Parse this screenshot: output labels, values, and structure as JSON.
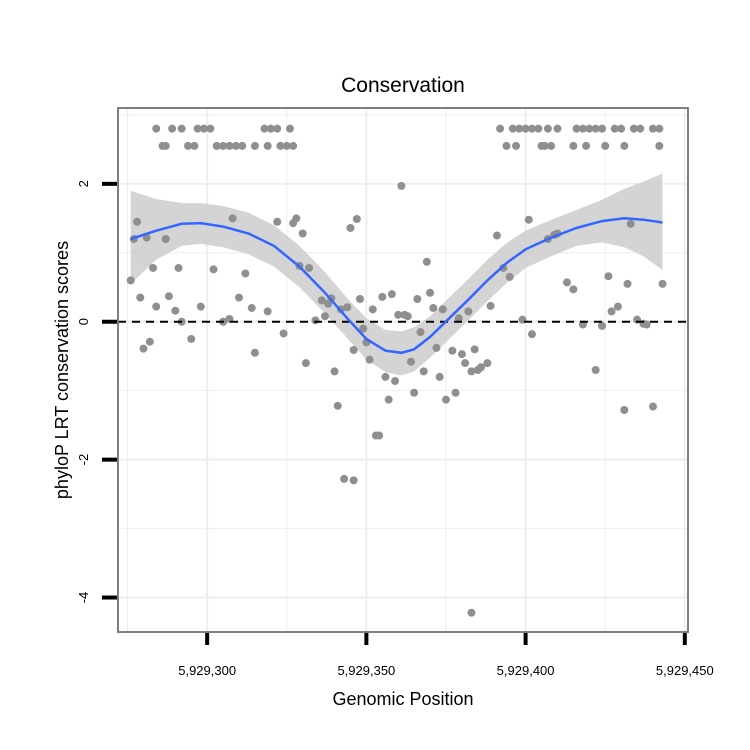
{
  "chart_data": {
    "type": "scatter",
    "title": "Conservation",
    "xlabel": "Genomic Position",
    "ylabel": "phyloP LRT conservation scores",
    "xlim": [
      5929272,
      5929451
    ],
    "ylim": [
      -4.5,
      3.1
    ],
    "x_ticks": [
      5929300,
      5929350,
      5929400,
      5929450
    ],
    "x_tick_labels": [
      "5,929,300",
      "5,929,350",
      "5,929,400",
      "5,929,450"
    ],
    "y_ticks": [
      -4,
      -2,
      0,
      2
    ],
    "y_tick_labels": [
      "-4",
      "-2",
      "0",
      "2"
    ],
    "grid": true,
    "reference_line": {
      "y": 0,
      "style": "dashed"
    },
    "colors": {
      "points": "#8f8f8f",
      "smooth_line": "#3366ff",
      "confidence_band": "#cccccc",
      "panel_border": "#7f7f7f",
      "grid": "#eeeeee"
    },
    "series": [
      {
        "name": "scores",
        "points": [
          [
            5929284,
            2.8
          ],
          [
            5929289,
            2.8
          ],
          [
            5929292,
            2.8
          ],
          [
            5929297,
            2.8
          ],
          [
            5929299,
            2.8
          ],
          [
            5929301,
            2.8
          ],
          [
            5929318,
            2.8
          ],
          [
            5929320,
            2.8
          ],
          [
            5929322,
            2.8
          ],
          [
            5929326,
            2.8
          ],
          [
            5929286,
            2.55
          ],
          [
            5929287,
            2.55
          ],
          [
            5929294,
            2.55
          ],
          [
            5929296,
            2.55
          ],
          [
            5929303,
            2.55
          ],
          [
            5929305,
            2.55
          ],
          [
            5929307,
            2.55
          ],
          [
            5929309,
            2.55
          ],
          [
            5929311,
            2.55
          ],
          [
            5929315,
            2.55
          ],
          [
            5929319,
            2.55
          ],
          [
            5929323,
            2.55
          ],
          [
            5929325,
            2.55
          ],
          [
            5929327,
            2.55
          ],
          [
            5929392,
            2.8
          ],
          [
            5929396,
            2.8
          ],
          [
            5929398,
            2.8
          ],
          [
            5929400,
            2.8
          ],
          [
            5929402,
            2.8
          ],
          [
            5929404,
            2.8
          ],
          [
            5929407,
            2.8
          ],
          [
            5929410,
            2.8
          ],
          [
            5929416,
            2.8
          ],
          [
            5929418,
            2.8
          ],
          [
            5929420,
            2.8
          ],
          [
            5929422,
            2.8
          ],
          [
            5929424,
            2.8
          ],
          [
            5929428,
            2.8
          ],
          [
            5929430,
            2.8
          ],
          [
            5929434,
            2.8
          ],
          [
            5929436,
            2.8
          ],
          [
            5929440,
            2.8
          ],
          [
            5929442,
            2.8
          ],
          [
            5929394,
            2.55
          ],
          [
            5929397,
            2.55
          ],
          [
            5929405,
            2.55
          ],
          [
            5929406,
            2.55
          ],
          [
            5929408,
            2.55
          ],
          [
            5929415,
            2.55
          ],
          [
            5929419,
            2.55
          ],
          [
            5929425,
            2.55
          ],
          [
            5929431,
            2.55
          ],
          [
            5929442,
            2.55
          ],
          [
            5929278,
            1.45
          ],
          [
            5929277,
            1.2
          ],
          [
            5929281,
            1.22
          ],
          [
            5929276,
            0.6
          ],
          [
            5929279,
            0.35
          ],
          [
            5929283,
            0.78
          ],
          [
            5929284,
            0.22
          ],
          [
            5929287,
            1.2
          ],
          [
            5929288,
            0.37
          ],
          [
            5929291,
            0.78
          ],
          [
            5929290,
            0.16
          ],
          [
            5929282,
            -0.29
          ],
          [
            5929280,
            -0.39
          ],
          [
            5929292,
            0.0
          ],
          [
            5929295,
            -0.25
          ],
          [
            5929298,
            0.22
          ],
          [
            5929302,
            0.76
          ],
          [
            5929305,
            0.0
          ],
          [
            5929307,
            0.04
          ],
          [
            5929308,
            1.5
          ],
          [
            5929310,
            0.35
          ],
          [
            5929312,
            0.7
          ],
          [
            5929314,
            0.2
          ],
          [
            5929315,
            -0.45
          ],
          [
            5929319,
            0.15
          ],
          [
            5929322,
            1.45
          ],
          [
            5929324,
            -0.17
          ],
          [
            5929327,
            1.43
          ],
          [
            5929328,
            1.5
          ],
          [
            5929330,
            1.28
          ],
          [
            5929329,
            0.81
          ],
          [
            5929331,
            -0.6
          ],
          [
            5929332,
            0.78
          ],
          [
            5929334,
            0.02
          ],
          [
            5929336,
            0.31
          ],
          [
            5929337,
            0.08
          ],
          [
            5929338,
            0.26
          ],
          [
            5929339,
            0.34
          ],
          [
            5929340,
            -0.72
          ],
          [
            5929341,
            -1.22
          ],
          [
            5929342,
            0.18
          ],
          [
            5929344,
            0.21
          ],
          [
            5929345,
            1.36
          ],
          [
            5929346,
            -0.41
          ],
          [
            5929347,
            1.49
          ],
          [
            5929348,
            0.33
          ],
          [
            5929349,
            -0.1
          ],
          [
            5929350,
            -0.3
          ],
          [
            5929351,
            -0.55
          ],
          [
            5929352,
            0.18
          ],
          [
            5929353,
            -1.65
          ],
          [
            5929354,
            -1.65
          ],
          [
            5929355,
            0.36
          ],
          [
            5929356,
            -0.8
          ],
          [
            5929357,
            -1.13
          ],
          [
            5929358,
            0.4
          ],
          [
            5929359,
            -0.86
          ],
          [
            5929360,
            0.1
          ],
          [
            5929361,
            1.97
          ],
          [
            5929362,
            0.1
          ],
          [
            5929363,
            0.08
          ],
          [
            5929364,
            -0.58
          ],
          [
            5929365,
            -1.03
          ],
          [
            5929366,
            0.33
          ],
          [
            5929367,
            -0.15
          ],
          [
            5929368,
            -0.72
          ],
          [
            5929369,
            0.87
          ],
          [
            5929370,
            0.42
          ],
          [
            5929371,
            0.2
          ],
          [
            5929372,
            -0.38
          ],
          [
            5929373,
            -0.8
          ],
          [
            5929374,
            0.18
          ],
          [
            5929375,
            -1.13
          ],
          [
            5929377,
            -0.42
          ],
          [
            5929378,
            -1.03
          ],
          [
            5929379,
            0.05
          ],
          [
            5929380,
            -0.47
          ],
          [
            5929381,
            -0.6
          ],
          [
            5929382,
            0.15
          ],
          [
            5929383,
            -0.72
          ],
          [
            5929384,
            -0.4
          ],
          [
            5929385,
            -0.7
          ],
          [
            5929386,
            -0.66
          ],
          [
            5929388,
            -0.6
          ],
          [
            5929389,
            0.23
          ],
          [
            5929391,
            1.25
          ],
          [
            5929393,
            0.78
          ],
          [
            5929395,
            0.65
          ],
          [
            5929399,
            0.03
          ],
          [
            5929401,
            1.48
          ],
          [
            5929402,
            -0.18
          ],
          [
            5929409,
            1.26
          ],
          [
            5929410,
            1.28
          ],
          [
            5929407,
            1.2
          ],
          [
            5929413,
            0.57
          ],
          [
            5929415,
            0.47
          ],
          [
            5929418,
            -0.04
          ],
          [
            5929422,
            -0.7
          ],
          [
            5929424,
            -0.06
          ],
          [
            5929426,
            0.66
          ],
          [
            5929427,
            0.15
          ],
          [
            5929429,
            0.22
          ],
          [
            5929431,
            -1.28
          ],
          [
            5929432,
            0.55
          ],
          [
            5929433,
            1.42
          ],
          [
            5929435,
            0.03
          ],
          [
            5929437,
            -0.03
          ],
          [
            5929438,
            -0.04
          ],
          [
            5929440,
            -1.23
          ],
          [
            5929443,
            0.55
          ],
          [
            5929343,
            -2.28
          ],
          [
            5929346,
            -2.3
          ],
          [
            5929383,
            -4.22
          ]
        ]
      }
    ],
    "smooth": {
      "method": "loess",
      "x": [
        5929276,
        5929284,
        5929292,
        5929298,
        5929305,
        5929313,
        5929321,
        5929329,
        5929337,
        5929344,
        5929350,
        5929356,
        5929361,
        5929365,
        5929370,
        5929376,
        5929382,
        5929388,
        5929394,
        5929400,
        5929408,
        5929416,
        5929424,
        5929431,
        5929437,
        5929443
      ],
      "y": [
        1.2,
        1.32,
        1.42,
        1.43,
        1.38,
        1.28,
        1.1,
        0.8,
        0.42,
        0.05,
        -0.25,
        -0.42,
        -0.45,
        -0.4,
        -0.22,
        0.05,
        0.32,
        0.6,
        0.85,
        1.05,
        1.22,
        1.36,
        1.46,
        1.5,
        1.48,
        1.44
      ],
      "lower": [
        0.55,
        0.9,
        1.1,
        1.13,
        1.08,
        0.98,
        0.8,
        0.5,
        0.12,
        -0.24,
        -0.55,
        -0.73,
        -0.78,
        -0.72,
        -0.52,
        -0.25,
        0.02,
        0.3,
        0.56,
        0.78,
        0.95,
        1.1,
        1.15,
        1.08,
        0.95,
        0.75
      ],
      "upper": [
        1.9,
        1.78,
        1.72,
        1.72,
        1.68,
        1.58,
        1.4,
        1.1,
        0.72,
        0.34,
        0.05,
        -0.12,
        -0.14,
        -0.08,
        0.08,
        0.35,
        0.62,
        0.9,
        1.14,
        1.32,
        1.48,
        1.62,
        1.77,
        1.93,
        2.03,
        2.15
      ]
    }
  }
}
